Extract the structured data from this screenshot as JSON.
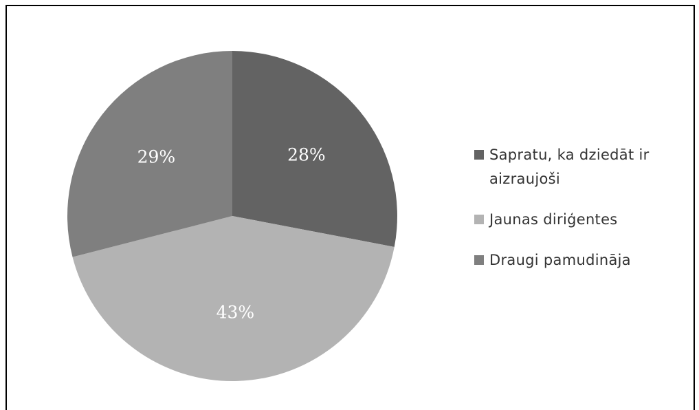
{
  "chart_data": {
    "type": "pie",
    "title": "",
    "slices": [
      {
        "label": "Sapratu, ka dziedāt ir aizraujoši",
        "value": 28,
        "display": "28%",
        "color": "#636363"
      },
      {
        "label": "Jaunas diriģentes",
        "value": 43,
        "display": "43%",
        "color": "#b3b3b3"
      },
      {
        "label": "Draugi pamudināja",
        "value": 29,
        "display": "29%",
        "color": "#7f7f7f"
      }
    ],
    "start_angle_deg": 0,
    "direction": "clockwise",
    "legend_position": "right"
  }
}
